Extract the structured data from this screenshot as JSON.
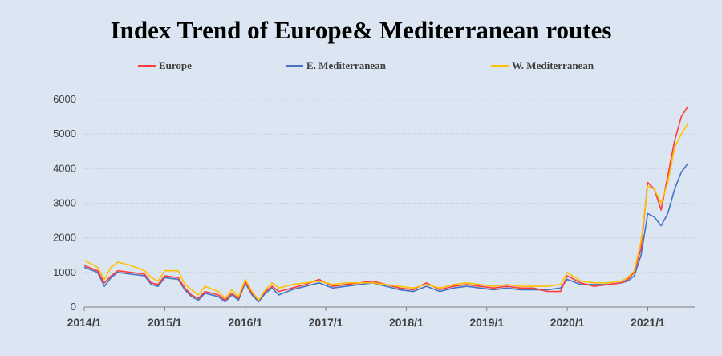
{
  "chart_data": {
    "type": "line",
    "title": "Index Trend of Europe& Mediterranean routes",
    "xlabel": "",
    "ylabel": "",
    "ylim": [
      0,
      6000
    ],
    "xlim": [
      "2014/1",
      "2021/8"
    ],
    "yticks": [
      "0",
      "1000",
      "2000",
      "3000",
      "4000",
      "5000",
      "6000"
    ],
    "xticks": [
      "2014/1",
      "2015/1",
      "2016/1",
      "2017/1",
      "2018/1",
      "2019/1",
      "2020/1",
      "2021/1"
    ],
    "grid": "horizontal",
    "legend_position": "top",
    "series": [
      {
        "name": "Europe",
        "color": "#ff3b3b",
        "points": [
          [
            "2014/1",
            1200
          ],
          [
            "2014/3",
            1050
          ],
          [
            "2014/4",
            700
          ],
          [
            "2014/5",
            900
          ],
          [
            "2014/6",
            1050
          ],
          [
            "2014/8",
            1000
          ],
          [
            "2014/10",
            950
          ],
          [
            "2014/11",
            700
          ],
          [
            "2014/12",
            650
          ],
          [
            "2015/1",
            900
          ],
          [
            "2015/3",
            850
          ],
          [
            "2015/4",
            550
          ],
          [
            "2015/5",
            350
          ],
          [
            "2015/6",
            250
          ],
          [
            "2015/7",
            450
          ],
          [
            "2015/9",
            350
          ],
          [
            "2015/10",
            200
          ],
          [
            "2015/11",
            400
          ],
          [
            "2015/12",
            250
          ],
          [
            "2016/1",
            750
          ],
          [
            "2016/2",
            400
          ],
          [
            "2016/3",
            200
          ],
          [
            "2016/4",
            450
          ],
          [
            "2016/5",
            600
          ],
          [
            "2016/6",
            450
          ],
          [
            "2016/8",
            550
          ],
          [
            "2016/10",
            650
          ],
          [
            "2016/12",
            800
          ],
          [
            "2017/2",
            600
          ],
          [
            "2017/4",
            650
          ],
          [
            "2017/6",
            700
          ],
          [
            "2017/8",
            750
          ],
          [
            "2017/10",
            650
          ],
          [
            "2017/12",
            550
          ],
          [
            "2018/2",
            500
          ],
          [
            "2018/4",
            700
          ],
          [
            "2018/6",
            500
          ],
          [
            "2018/8",
            600
          ],
          [
            "2018/10",
            650
          ],
          [
            "2018/12",
            600
          ],
          [
            "2019/2",
            550
          ],
          [
            "2019/4",
            600
          ],
          [
            "2019/6",
            550
          ],
          [
            "2019/8",
            550
          ],
          [
            "2019/10",
            450
          ],
          [
            "2019/12",
            450
          ],
          [
            "2020/1",
            900
          ],
          [
            "2020/3",
            700
          ],
          [
            "2020/5",
            600
          ],
          [
            "2020/7",
            650
          ],
          [
            "2020/9",
            700
          ],
          [
            "2020/10",
            800
          ],
          [
            "2020/11",
            1000
          ],
          [
            "2020/12",
            1700
          ],
          [
            "2021/1",
            3600
          ],
          [
            "2021/2",
            3400
          ],
          [
            "2021/3",
            2800
          ],
          [
            "2021/4",
            3800
          ],
          [
            "2021/5",
            4800
          ],
          [
            "2021/6",
            5500
          ],
          [
            "2021/7",
            5800
          ]
        ]
      },
      {
        "name": "E. Mediterranean",
        "color": "#4472c4",
        "points": [
          [
            "2014/1",
            1150
          ],
          [
            "2014/3",
            1000
          ],
          [
            "2014/4",
            600
          ],
          [
            "2014/5",
            850
          ],
          [
            "2014/6",
            1000
          ],
          [
            "2014/8",
            950
          ],
          [
            "2014/10",
            900
          ],
          [
            "2014/11",
            650
          ],
          [
            "2014/12",
            600
          ],
          [
            "2015/1",
            850
          ],
          [
            "2015/3",
            800
          ],
          [
            "2015/4",
            500
          ],
          [
            "2015/5",
            300
          ],
          [
            "2015/6",
            200
          ],
          [
            "2015/7",
            400
          ],
          [
            "2015/9",
            300
          ],
          [
            "2015/10",
            150
          ],
          [
            "2015/11",
            350
          ],
          [
            "2015/12",
            200
          ],
          [
            "2016/1",
            700
          ],
          [
            "2016/2",
            350
          ],
          [
            "2016/3",
            150
          ],
          [
            "2016/4",
            400
          ],
          [
            "2016/5",
            550
          ],
          [
            "2016/6",
            350
          ],
          [
            "2016/8",
            500
          ],
          [
            "2016/10",
            600
          ],
          [
            "2016/12",
            700
          ],
          [
            "2017/2",
            550
          ],
          [
            "2017/4",
            600
          ],
          [
            "2017/6",
            650
          ],
          [
            "2017/8",
            700
          ],
          [
            "2017/10",
            600
          ],
          [
            "2017/12",
            500
          ],
          [
            "2018/2",
            450
          ],
          [
            "2018/4",
            600
          ],
          [
            "2018/6",
            450
          ],
          [
            "2018/8",
            550
          ],
          [
            "2018/10",
            600
          ],
          [
            "2018/12",
            550
          ],
          [
            "2019/2",
            500
          ],
          [
            "2019/4",
            550
          ],
          [
            "2019/6",
            500
          ],
          [
            "2019/8",
            500
          ],
          [
            "2019/10",
            500
          ],
          [
            "2019/12",
            550
          ],
          [
            "2020/1",
            800
          ],
          [
            "2020/3",
            650
          ],
          [
            "2020/5",
            650
          ],
          [
            "2020/7",
            650
          ],
          [
            "2020/9",
            700
          ],
          [
            "2020/10",
            750
          ],
          [
            "2020/11",
            900
          ],
          [
            "2020/12",
            1500
          ],
          [
            "2021/1",
            2700
          ],
          [
            "2021/2",
            2600
          ],
          [
            "2021/3",
            2350
          ],
          [
            "2021/4",
            2700
          ],
          [
            "2021/5",
            3400
          ],
          [
            "2021/6",
            3900
          ],
          [
            "2021/7",
            4150
          ]
        ]
      },
      {
        "name": "W. Mediterranean",
        "color": "#ffc000",
        "points": [
          [
            "2014/1",
            1350
          ],
          [
            "2014/3",
            1150
          ],
          [
            "2014/4",
            800
          ],
          [
            "2014/5",
            1150
          ],
          [
            "2014/6",
            1300
          ],
          [
            "2014/8",
            1200
          ],
          [
            "2014/10",
            1050
          ],
          [
            "2014/11",
            850
          ],
          [
            "2014/12",
            750
          ],
          [
            "2015/1",
            1050
          ],
          [
            "2015/3",
            1050
          ],
          [
            "2015/4",
            650
          ],
          [
            "2015/5",
            500
          ],
          [
            "2015/6",
            350
          ],
          [
            "2015/7",
            600
          ],
          [
            "2015/9",
            450
          ],
          [
            "2015/10",
            250
          ],
          [
            "2015/11",
            500
          ],
          [
            "2015/12",
            300
          ],
          [
            "2016/1",
            800
          ],
          [
            "2016/2",
            450
          ],
          [
            "2016/3",
            200
          ],
          [
            "2016/4",
            500
          ],
          [
            "2016/5",
            700
          ],
          [
            "2016/6",
            550
          ],
          [
            "2016/8",
            650
          ],
          [
            "2016/10",
            700
          ],
          [
            "2016/12",
            750
          ],
          [
            "2017/2",
            650
          ],
          [
            "2017/4",
            700
          ],
          [
            "2017/6",
            700
          ],
          [
            "2017/8",
            700
          ],
          [
            "2017/10",
            650
          ],
          [
            "2017/12",
            600
          ],
          [
            "2018/2",
            550
          ],
          [
            "2018/4",
            650
          ],
          [
            "2018/6",
            550
          ],
          [
            "2018/8",
            650
          ],
          [
            "2018/10",
            700
          ],
          [
            "2018/12",
            650
          ],
          [
            "2019/2",
            600
          ],
          [
            "2019/4",
            650
          ],
          [
            "2019/6",
            600
          ],
          [
            "2019/8",
            600
          ],
          [
            "2019/10",
            600
          ],
          [
            "2019/12",
            650
          ],
          [
            "2020/1",
            1000
          ],
          [
            "2020/3",
            750
          ],
          [
            "2020/5",
            700
          ],
          [
            "2020/7",
            700
          ],
          [
            "2020/9",
            750
          ],
          [
            "2020/10",
            850
          ],
          [
            "2020/11",
            1050
          ],
          [
            "2020/12",
            1900
          ],
          [
            "2021/1",
            3500
          ],
          [
            "2021/2",
            3400
          ],
          [
            "2021/3",
            3000
          ],
          [
            "2021/4",
            3600
          ],
          [
            "2021/5",
            4600
          ],
          [
            "2021/6",
            5000
          ],
          [
            "2021/7",
            5300
          ]
        ]
      }
    ]
  }
}
